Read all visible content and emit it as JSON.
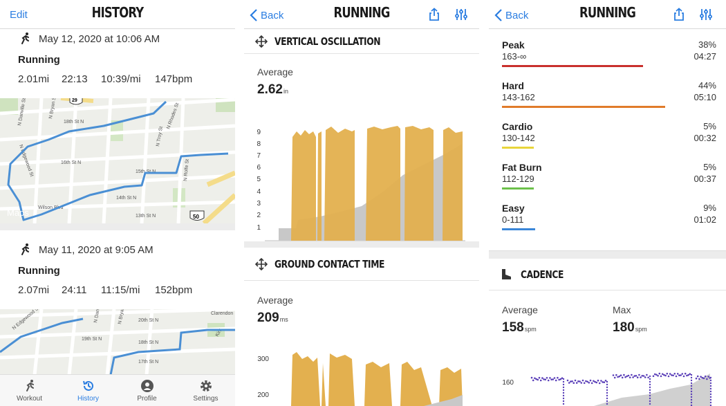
{
  "history": {
    "edit_label": "Edit",
    "title": "HISTORY",
    "workouts": [
      {
        "date": "May 12, 2020 at 10:06 AM",
        "type": "Running",
        "distance": "2.01mi",
        "duration": "22:13",
        "pace": "10:39/mi",
        "heart_rate": "147bpm",
        "map_labels": [
          "29",
          "N Danville St",
          "N Bryan St",
          "18th St N",
          "N Rhodes St",
          "N Troy St",
          "16th St N",
          "15th St N",
          "14th St N",
          "13th St N",
          "N Rolfe St",
          "N Edgewood St",
          "Wilson Blvd",
          "50"
        ],
        "maps_label": "Maps"
      },
      {
        "date": "May 11, 2020 at 9:05 AM",
        "type": "Running",
        "distance": "2.07mi",
        "duration": "24:11",
        "pace": "11:15/mi",
        "heart_rate": "152bpm",
        "map_labels": [
          "N Edgewood St",
          "20th St N",
          "19th St N",
          "18th St N",
          "17th St N",
          "N Danville St",
          "N Bryan St",
          "Clarendon",
          "Kirk"
        ]
      }
    ],
    "tabs": [
      {
        "label": "Workout",
        "icon": "running-icon",
        "active": false
      },
      {
        "label": "History",
        "icon": "history-icon",
        "active": true
      },
      {
        "label": "Profile",
        "icon": "profile-icon",
        "active": false
      },
      {
        "label": "Settings",
        "icon": "gear-icon",
        "active": false
      }
    ]
  },
  "running_detail": {
    "back_label": "Back",
    "title": "RUNNING",
    "vertical_oscillation": {
      "title": "VERTICAL OSCILLATION",
      "average_label": "Average",
      "average_value": "2.62",
      "average_unit": "in",
      "y_ticks": [
        "9",
        "8",
        "7",
        "6",
        "5",
        "4",
        "3",
        "2",
        "1"
      ]
    },
    "ground_contact_time": {
      "title": "GROUND CONTACT TIME",
      "average_label": "Average",
      "average_value": "209",
      "average_unit": "ms",
      "y_ticks": [
        "300",
        "200"
      ]
    }
  },
  "heart_zones": {
    "back_label": "Back",
    "title": "RUNNING",
    "zones": [
      {
        "name": "Peak",
        "range": "163-∞",
        "percent": "38%",
        "time": "04:27",
        "color": "#c9302c",
        "fraction": 0.38
      },
      {
        "name": "Hard",
        "range": "143-162",
        "percent": "44%",
        "time": "05:10",
        "color": "#e07b2a",
        "fraction": 0.44
      },
      {
        "name": "Cardio",
        "range": "130-142",
        "percent": "5%",
        "time": "00:32",
        "color": "#e8d53a",
        "fraction": 0.05
      },
      {
        "name": "Fat Burn",
        "range": "112-129",
        "percent": "5%",
        "time": "00:37",
        "color": "#6cc04a",
        "fraction": 0.05
      },
      {
        "name": "Easy",
        "range": "0-111",
        "percent": "9%",
        "time": "01:02",
        "color": "#3a86d8",
        "fraction": 0.09
      }
    ],
    "cadence": {
      "title": "CADENCE",
      "average_label": "Average",
      "average_value": "158",
      "average_unit": "spm",
      "max_label": "Max",
      "max_value": "180",
      "max_unit": "spm",
      "y_tick": "160"
    }
  },
  "colors": {
    "accent": "#2a7de1",
    "route": "#4a8fd4",
    "chart_gold": "#e3b04f",
    "chart_gray": "#c8c8c8",
    "cadence": "#5a3fb8"
  }
}
